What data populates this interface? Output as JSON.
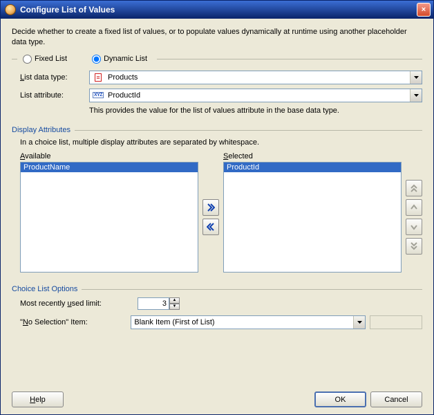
{
  "window": {
    "title": "Configure List of Values",
    "close_icon": "×"
  },
  "description": "Decide whether to create a fixed list of values, or to populate values dynamically at runtime using another placeholder data type.",
  "mode": {
    "fixed_label": "Fixed List",
    "dynamic_label": "Dynamic List",
    "selected": "dynamic"
  },
  "list_data_type": {
    "label_pre": "L",
    "label_rest": "ist data type:",
    "value": "Products",
    "icon": "≡"
  },
  "list_attribute": {
    "label_pre": "List attribute:",
    "value": "ProductId",
    "helper": "This provides the value for the list of values attribute in the base data type.",
    "icon": "XYZ"
  },
  "display_attributes": {
    "header": "Display Attributes",
    "helper": "In a choice list, multiple display attributes are separated by whitespace.",
    "available_label_u": "A",
    "available_label_rest": "vailable",
    "available_items": [
      "ProductName"
    ],
    "selected_label_u": "S",
    "selected_label_rest": "elected",
    "selected_items": [
      "ProductId"
    ]
  },
  "options": {
    "header": "Choice List Options",
    "mru_label_pre": "Most recently ",
    "mru_label_u": "u",
    "mru_label_post": "sed limit:",
    "mru_value": "3",
    "no_sel_label": "\"No Selection\" Item:",
    "no_sel_label_u": "N",
    "no_sel_value": "Blank Item (First of List)"
  },
  "buttons": {
    "help": "Help",
    "help_u": "H",
    "ok": "OK",
    "cancel": "Cancel"
  },
  "colors": {
    "titlebar_start": "#3b6ed4",
    "titlebar_end": "#0a246a",
    "selection": "#316ac5",
    "panel_bg": "#ece9d8",
    "border": "#7f9db9",
    "section_header": "#154aa0"
  }
}
